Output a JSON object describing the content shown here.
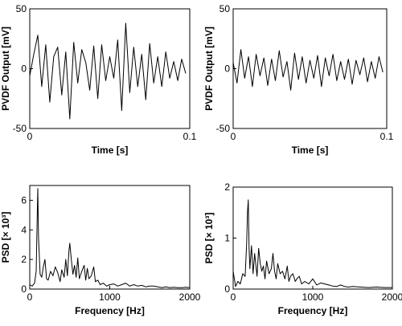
{
  "chart_data": [
    {
      "type": "line",
      "xlabel": "Time [s]",
      "ylabel": "PVDF Output [mV]",
      "xlim": [
        0,
        0.1
      ],
      "ylim": [
        -50,
        50
      ],
      "xticks": [
        {
          "value": 0,
          "label": "0"
        },
        {
          "value": 0.1,
          "label": "0.1"
        }
      ],
      "yticks": [
        {
          "value": -50,
          "label": "-50"
        },
        {
          "value": 0,
          "label": "0"
        },
        {
          "value": 50,
          "label": "50"
        }
      ],
      "series": [
        {
          "x": [
            0.0,
            0.0025,
            0.005,
            0.0075,
            0.01,
            0.0125,
            0.015,
            0.0175,
            0.02,
            0.0225,
            0.025,
            0.0275,
            0.03,
            0.0325,
            0.035,
            0.0375,
            0.04,
            0.0425,
            0.045,
            0.0475,
            0.05,
            0.0525,
            0.055,
            0.0575,
            0.06,
            0.0625,
            0.065,
            0.0675,
            0.07,
            0.0725,
            0.075,
            0.0775,
            0.08,
            0.0825,
            0.085,
            0.0875,
            0.09,
            0.0925,
            0.095,
            0.0975
          ],
          "y": [
            -6,
            12,
            28,
            -15,
            20,
            -28,
            10,
            18,
            -22,
            14,
            -42,
            22,
            -12,
            16,
            5,
            -18,
            19,
            -25,
            20,
            -10,
            10,
            -8,
            24,
            -35,
            38,
            -20,
            18,
            -15,
            12,
            -26,
            21,
            -12,
            10,
            -15,
            14,
            -8,
            6,
            -10,
            8,
            -4
          ]
        }
      ]
    },
    {
      "type": "line",
      "xlabel": "Time [s]",
      "ylabel": "PVDF Output [mV]",
      "xlim": [
        0,
        0.1
      ],
      "ylim": [
        -50,
        50
      ],
      "xticks": [
        {
          "value": 0,
          "label": "0"
        },
        {
          "value": 0.1,
          "label": "0.1"
        }
      ],
      "yticks": [
        {
          "value": -50,
          "label": "-50"
        },
        {
          "value": 0,
          "label": "0"
        },
        {
          "value": 50,
          "label": "50"
        }
      ],
      "series": [
        {
          "x": [
            0.0,
            0.0025,
            0.005,
            0.0075,
            0.01,
            0.0125,
            0.015,
            0.0175,
            0.02,
            0.0225,
            0.025,
            0.0275,
            0.03,
            0.0325,
            0.035,
            0.0375,
            0.04,
            0.0425,
            0.045,
            0.0475,
            0.05,
            0.0525,
            0.055,
            0.0575,
            0.06,
            0.0625,
            0.065,
            0.0675,
            0.07,
            0.0725,
            0.075,
            0.0775,
            0.08,
            0.0825,
            0.085,
            0.0875,
            0.09,
            0.0925,
            0.095,
            0.0975
          ],
          "y": [
            5,
            -12,
            16,
            -8,
            10,
            -15,
            12,
            -6,
            9,
            -14,
            8,
            -10,
            15,
            -7,
            6,
            -18,
            13,
            -9,
            10,
            -12,
            7,
            -8,
            11,
            -15,
            9,
            -6,
            12,
            -10,
            6,
            -9,
            8,
            -13,
            7,
            -5,
            9,
            -11,
            6,
            -8,
            10,
            -3
          ]
        }
      ]
    },
    {
      "type": "line",
      "xlabel": "Frequency [Hz]",
      "ylabel": "PSD [× 10³]",
      "xlim": [
        0,
        2000
      ],
      "ylim": [
        0,
        7
      ],
      "xticks": [
        {
          "value": 0,
          "label": "0"
        },
        {
          "value": 1000,
          "label": "1000"
        },
        {
          "value": 2000,
          "label": "2000"
        }
      ],
      "yticks": [
        {
          "value": 0,
          "label": "0"
        },
        {
          "value": 2,
          "label": "2"
        },
        {
          "value": 4,
          "label": "4"
        },
        {
          "value": 6,
          "label": "6"
        }
      ],
      "series": [
        {
          "x": [
            0,
            30,
            60,
            80,
            95,
            100,
            110,
            130,
            150,
            170,
            190,
            210,
            230,
            260,
            290,
            320,
            350,
            380,
            400,
            430,
            450,
            470,
            490,
            500,
            520,
            540,
            560,
            580,
            600,
            620,
            650,
            680,
            700,
            720,
            740,
            770,
            800,
            820,
            850,
            880,
            920,
            960,
            1000,
            1050,
            1100,
            1150,
            1200,
            1250,
            1300,
            1350,
            1400,
            1450,
            1500,
            1550,
            1600,
            1650,
            1700,
            1750,
            1800,
            1850,
            1900,
            1950,
            2000
          ],
          "y": [
            0.3,
            0.2,
            0.4,
            1.2,
            5.5,
            6.8,
            3.5,
            1.0,
            0.8,
            1.5,
            2.0,
            0.7,
            0.6,
            1.2,
            0.9,
            1.5,
            1.1,
            0.5,
            1.3,
            0.8,
            2.0,
            0.9,
            2.6,
            3.1,
            2.0,
            1.0,
            1.6,
            0.8,
            2.1,
            0.7,
            1.2,
            1.6,
            0.6,
            1.4,
            0.7,
            0.9,
            1.5,
            0.5,
            0.6,
            0.3,
            0.4,
            0.2,
            0.3,
            0.35,
            0.2,
            0.3,
            0.4,
            0.2,
            0.3,
            0.2,
            0.25,
            0.15,
            0.2,
            0.2,
            0.15,
            0.1,
            0.15,
            0.1,
            0.12,
            0.1,
            0.1,
            0.12,
            0.1
          ]
        }
      ]
    },
    {
      "type": "line",
      "xlabel": "Frequency [Hz]",
      "ylabel": "PSD [× 10³]",
      "xlim": [
        0,
        2000
      ],
      "ylim": [
        0,
        2
      ],
      "xticks": [
        {
          "value": 0,
          "label": "0"
        },
        {
          "value": 1000,
          "label": "1000"
        },
        {
          "value": 2000,
          "label": "2000"
        }
      ],
      "yticks": [
        {
          "value": 0,
          "label": "0"
        },
        {
          "value": 1,
          "label": "1"
        },
        {
          "value": 2,
          "label": "2"
        }
      ],
      "series": [
        {
          "x": [
            0,
            30,
            60,
            90,
            120,
            150,
            170,
            180,
            190,
            200,
            210,
            230,
            250,
            270,
            300,
            320,
            340,
            360,
            380,
            400,
            420,
            450,
            480,
            500,
            520,
            540,
            560,
            590,
            620,
            650,
            680,
            700,
            720,
            750,
            780,
            800,
            830,
            860,
            900,
            950,
            1000,
            1050,
            1100,
            1150,
            1200,
            1250,
            1300,
            1350,
            1400,
            1450,
            1500,
            1600,
            1700,
            1800,
            1900,
            2000
          ],
          "y": [
            0.35,
            0.05,
            0.15,
            0.1,
            0.3,
            0.25,
            0.9,
            1.5,
            1.75,
            0.8,
            0.4,
            0.85,
            0.3,
            0.7,
            0.25,
            0.8,
            0.5,
            0.35,
            0.45,
            0.2,
            0.55,
            0.3,
            0.4,
            0.7,
            0.35,
            0.2,
            0.5,
            0.3,
            0.35,
            0.2,
            0.45,
            0.15,
            0.25,
            0.3,
            0.15,
            0.2,
            0.25,
            0.1,
            0.15,
            0.1,
            0.2,
            0.08,
            0.12,
            0.1,
            0.08,
            0.06,
            0.05,
            0.08,
            0.05,
            0.04,
            0.05,
            0.04,
            0.03,
            0.04,
            0.03,
            0.03
          ]
        }
      ]
    }
  ]
}
